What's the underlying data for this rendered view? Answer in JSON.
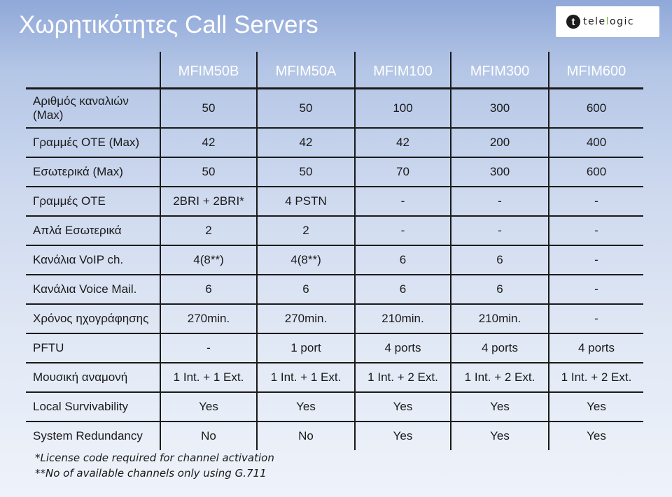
{
  "title": "Χωρητικότητες Call Servers",
  "logo": {
    "mark": "t",
    "text_main": "tele",
    "text_accent": "l",
    "text_end": "ogic"
  },
  "table": {
    "columns": [
      "MFIM50B",
      "MFIM50A",
      "MFIM100",
      "MFIM300",
      "MFIM600"
    ],
    "rows": [
      {
        "label": "Αριθμός καναλιών (Max)",
        "values": [
          "50",
          "50",
          "100",
          "300",
          "600"
        ]
      },
      {
        "label": "Γραμμές ΟΤΕ (Max)",
        "values": [
          "42",
          "42",
          "42",
          "200",
          "400"
        ]
      },
      {
        "label": "Εσωτερικά (Max)",
        "values": [
          "50",
          "50",
          "70",
          "300",
          "600"
        ]
      },
      {
        "label": "Γραμμές ΟΤΕ",
        "values": [
          "2BRI + 2BRI*",
          "4 PSTN",
          "-",
          "-",
          "-"
        ]
      },
      {
        "label": "Απλά Εσωτερικά",
        "values": [
          "2",
          "2",
          "-",
          "-",
          "-"
        ]
      },
      {
        "label": "Κανάλια VoIP ch.",
        "values": [
          "4(8**)",
          "4(8**)",
          "6",
          "6",
          "-"
        ]
      },
      {
        "label": "Κανάλια Voice Mail.",
        "values": [
          "6",
          "6",
          "6",
          "6",
          "-"
        ]
      },
      {
        "label": "Χρόνος ηχογράφησης",
        "values": [
          "270min.",
          "270min.",
          "210min.",
          "210min.",
          "-"
        ]
      },
      {
        "label": "PFTU",
        "values": [
          "-",
          "1 port",
          "4 ports",
          "4 ports",
          "4 ports"
        ]
      },
      {
        "label": "Μουσική αναμονή",
        "values": [
          "1 Int. + 1 Ext.",
          "1 Int. + 1 Ext.",
          "1 Int. + 2 Ext.",
          "1 Int. + 2 Ext.",
          "1 Int. + 2 Ext."
        ]
      },
      {
        "label": "Local Survivability",
        "values": [
          "Yes",
          "Yes",
          "Yes",
          "Yes",
          "Yes"
        ]
      },
      {
        "label": "System Redundancy",
        "values": [
          "No",
          "No",
          "Yes",
          "Yes",
          "Yes"
        ]
      }
    ]
  },
  "footnotes": [
    "*License code required for channel activation",
    "**No of available channels only using G.711"
  ],
  "colors": {
    "title": "#ffffff",
    "header_text": "#ffffff",
    "grid_lines": "#1a1a1a",
    "logo_accent": "#7cb342"
  }
}
